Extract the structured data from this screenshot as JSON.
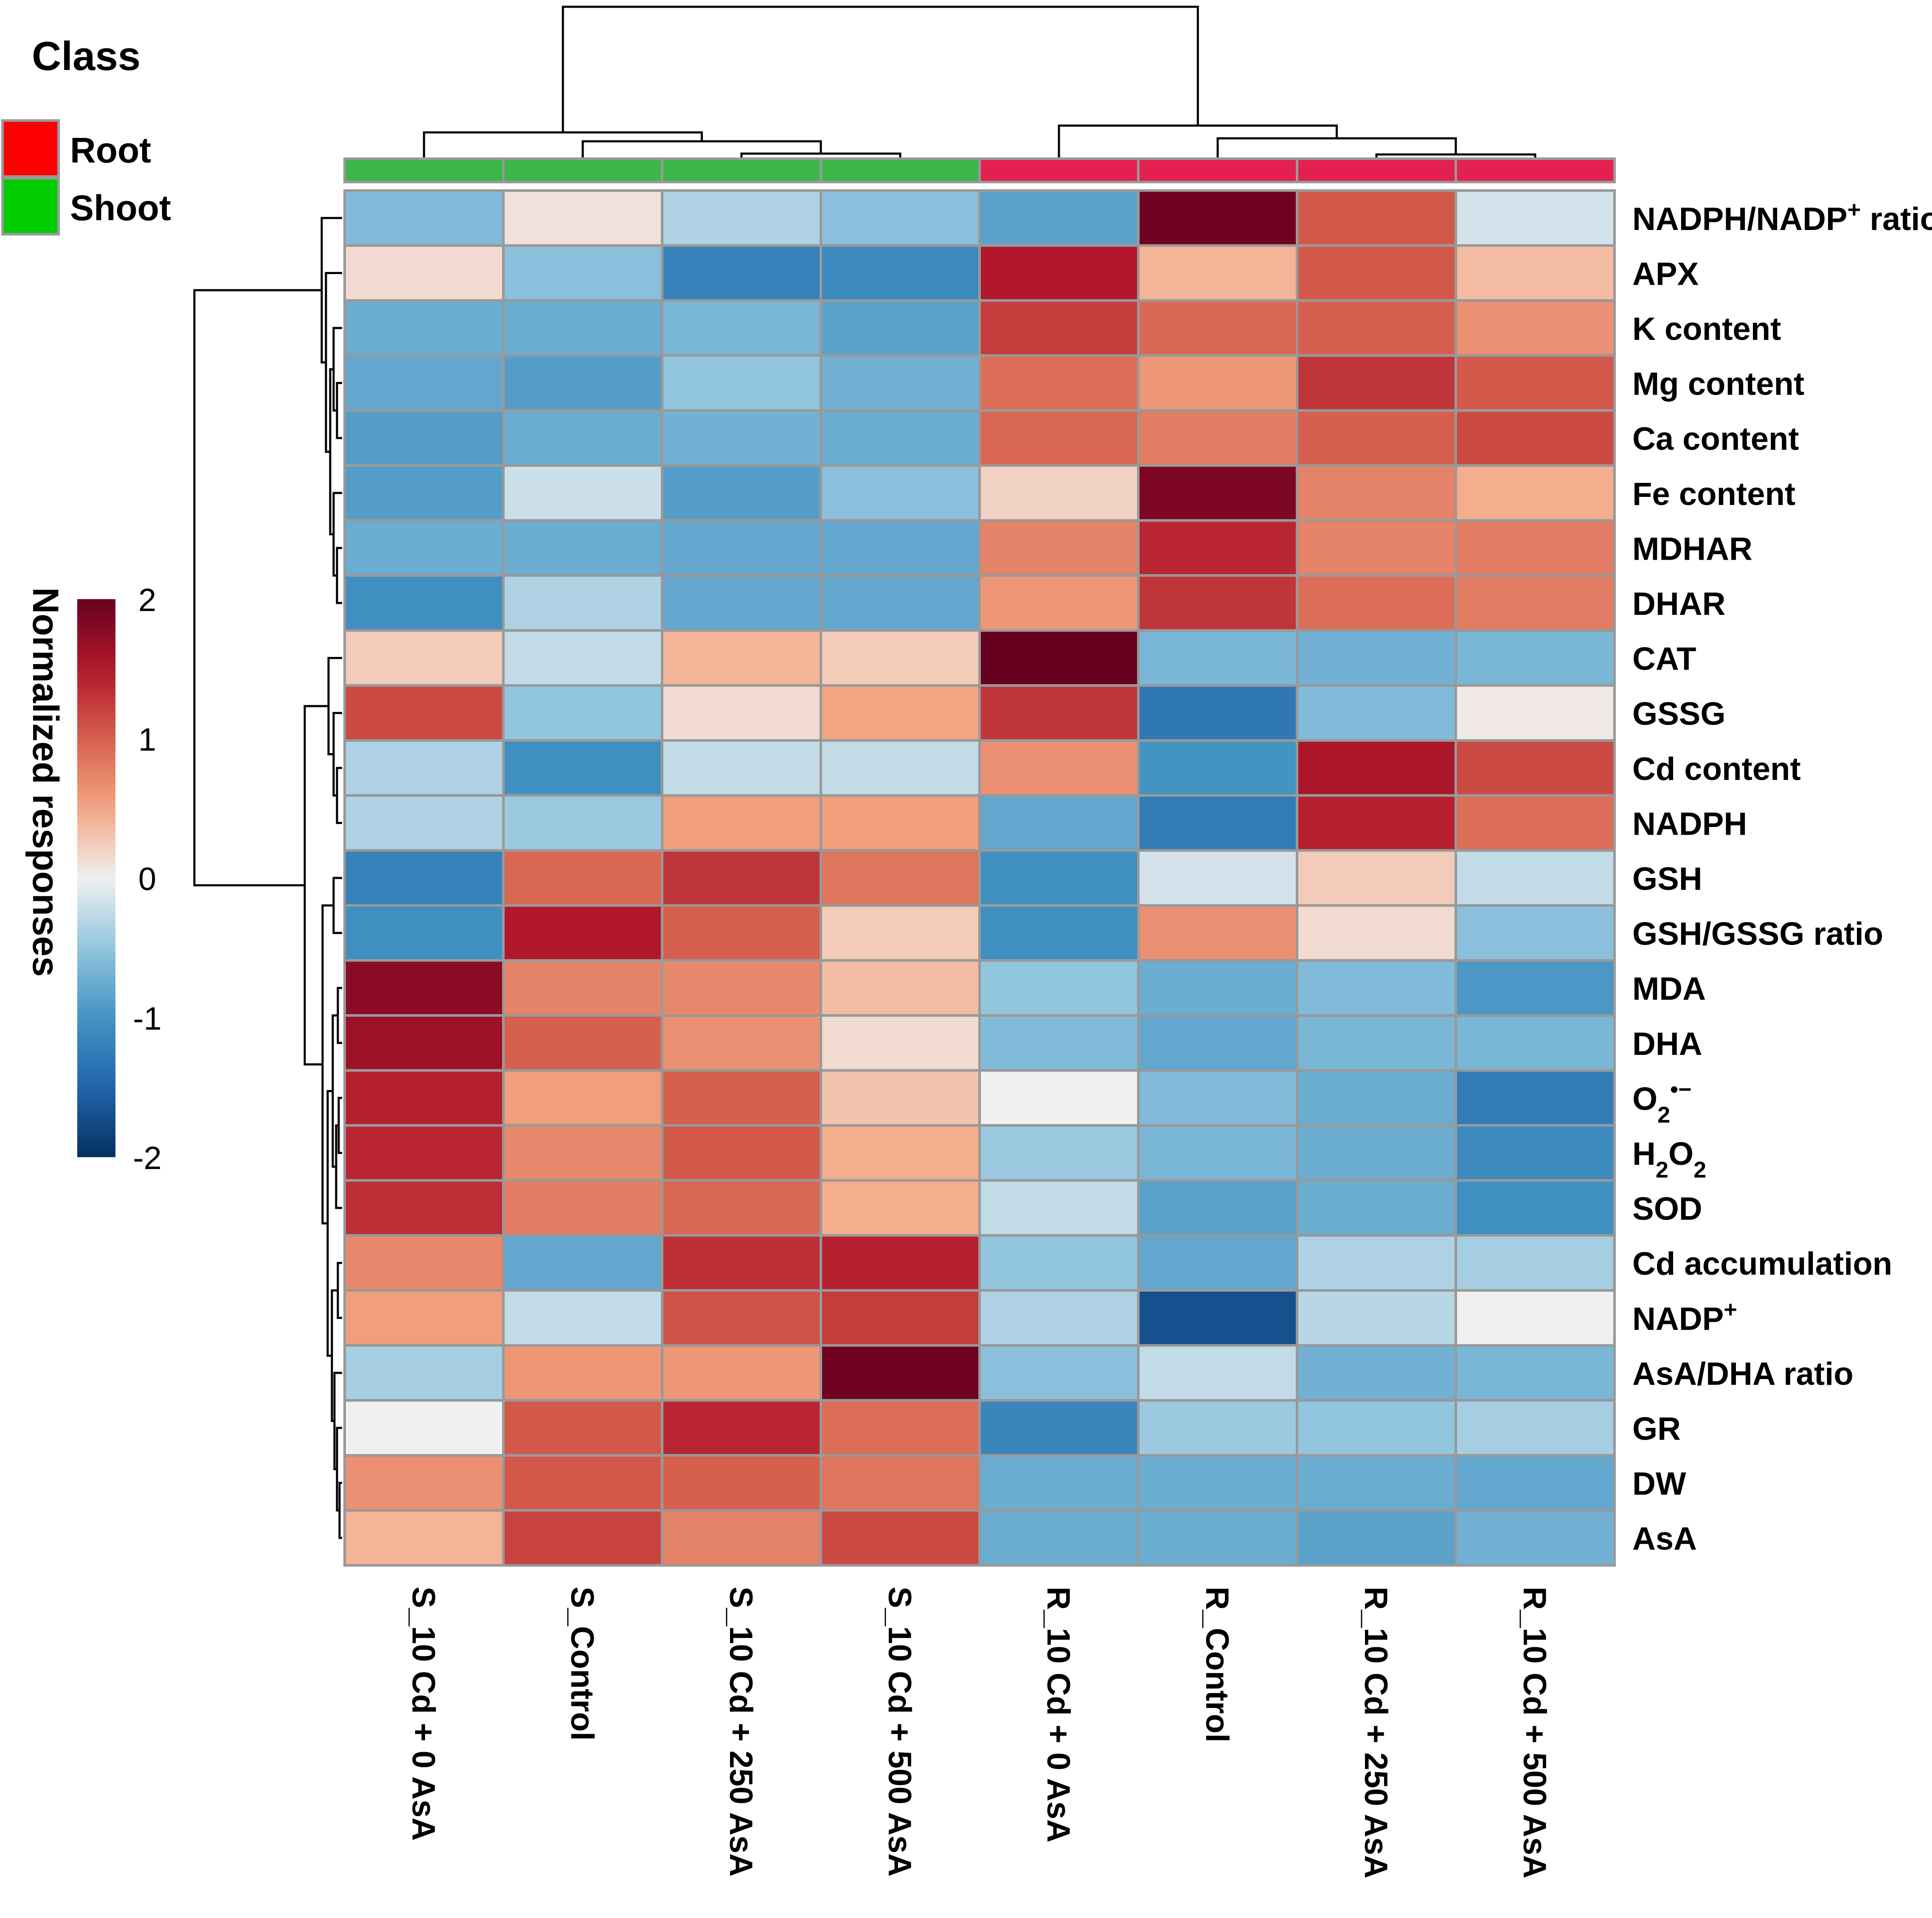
{
  "chart_data": {
    "type": "heatmap",
    "legend_title": "Class",
    "classes": [
      {
        "name": "Root",
        "color": "#ff0000"
      },
      {
        "name": "Shoot",
        "color": "#00cc00"
      }
    ],
    "class_bar_colors": {
      "Shoot": "#3cb54a",
      "Root": "#e3204f"
    },
    "colorbar": {
      "title": "Normalized responses",
      "ticks": [
        "2",
        "1",
        "0",
        "-1",
        "-2"
      ],
      "range": [
        -2,
        2
      ]
    },
    "columns": [
      {
        "label": "S_10 Cd + 0 AsA",
        "class": "Shoot"
      },
      {
        "label": "S_Control",
        "class": "Shoot"
      },
      {
        "label": "S_10 Cd + 250 AsA",
        "class": "Shoot"
      },
      {
        "label": "S_10 Cd + 500 AsA",
        "class": "Shoot"
      },
      {
        "label": "R_10 Cd + 0 AsA",
        "class": "Root"
      },
      {
        "label": "R_Control",
        "class": "Root"
      },
      {
        "label": "R_10 Cd + 250 AsA",
        "class": "Root"
      },
      {
        "label": "R_10 Cd + 500 AsA",
        "class": "Root"
      }
    ],
    "rows": [
      {
        "label": "NADPH/NADP",
        "sup": "+",
        "suffix": " ratio"
      },
      {
        "label": "APX"
      },
      {
        "label": "K content"
      },
      {
        "label": "Mg content"
      },
      {
        "label": "Ca content"
      },
      {
        "label": "Fe content"
      },
      {
        "label": "MDHAR"
      },
      {
        "label": "DHAR"
      },
      {
        "label": "CAT"
      },
      {
        "label": "GSSG"
      },
      {
        "label": "Cd content"
      },
      {
        "label": "NADPH"
      },
      {
        "label": "GSH"
      },
      {
        "label": "GSH/GSSG ratio"
      },
      {
        "label": "MDA"
      },
      {
        "label": "DHA"
      },
      {
        "label": "O",
        "sub": "2",
        "sup": "•−"
      },
      {
        "label": "H",
        "sub": "2",
        "after": "O",
        "sub2": "2"
      },
      {
        "label": "SOD"
      },
      {
        "label": "Cd accumulation"
      },
      {
        "label": "NADP",
        "sup": "+"
      },
      {
        "label": "AsA/DHA ratio"
      },
      {
        "label": "GR"
      },
      {
        "label": "DW"
      },
      {
        "label": "AsA"
      }
    ],
    "values": [
      [
        -0.6,
        0.1,
        -0.35,
        -0.55,
        -0.85,
        1.95,
        1.05,
        -0.15
      ],
      [
        0.15,
        -0.55,
        -1.2,
        -1.1,
        1.5,
        0.4,
        1.05,
        0.35
      ],
      [
        -0.75,
        -0.75,
        -0.65,
        -0.85,
        1.25,
        0.95,
        1.0,
        0.65
      ],
      [
        -0.8,
        -0.9,
        -0.5,
        -0.7,
        0.9,
        0.6,
        1.3,
        1.05
      ],
      [
        -0.9,
        -0.75,
        -0.7,
        -0.75,
        0.95,
        0.8,
        1.0,
        1.15
      ],
      [
        -0.9,
        -0.2,
        -0.9,
        -0.55,
        0.2,
        1.85,
        0.75,
        0.45
      ],
      [
        -0.75,
        -0.75,
        -0.8,
        -0.8,
        0.75,
        1.4,
        0.75,
        0.8
      ],
      [
        -1.05,
        -0.35,
        -0.8,
        -0.8,
        0.6,
        1.3,
        0.9,
        0.8
      ],
      [
        0.25,
        -0.25,
        0.4,
        0.25,
        2.05,
        -0.65,
        -0.7,
        -0.65
      ],
      [
        1.15,
        -0.5,
        0.15,
        0.5,
        1.3,
        -1.3,
        -0.6,
        0.05
      ],
      [
        -0.35,
        -1.05,
        -0.25,
        -0.25,
        0.65,
        -1.0,
        1.55,
        1.15
      ],
      [
        -0.35,
        -0.45,
        0.55,
        0.55,
        -0.8,
        -1.25,
        1.45,
        0.9
      ],
      [
        -1.2,
        0.95,
        1.3,
        0.85,
        -1.05,
        -0.15,
        0.25,
        -0.25
      ],
      [
        -1.05,
        1.5,
        1.0,
        0.25,
        -1.05,
        0.65,
        0.15,
        -0.55
      ],
      [
        1.75,
        0.75,
        0.7,
        0.35,
        -0.5,
        -0.75,
        -0.6,
        -0.95
      ],
      [
        1.65,
        1.0,
        0.65,
        0.15,
        -0.6,
        -0.8,
        -0.65,
        -0.65
      ],
      [
        1.45,
        0.55,
        1.0,
        0.3,
        0.0,
        -0.6,
        -0.75,
        -1.25
      ],
      [
        1.4,
        0.7,
        1.05,
        0.45,
        -0.45,
        -0.65,
        -0.75,
        -1.1
      ],
      [
        1.35,
        0.8,
        0.95,
        0.45,
        -0.25,
        -0.85,
        -0.75,
        -1.05
      ],
      [
        0.7,
        -0.8,
        1.35,
        1.45,
        -0.5,
        -0.8,
        -0.35,
        -0.4
      ],
      [
        0.55,
        -0.25,
        1.1,
        1.25,
        -0.35,
        -1.7,
        -0.3,
        0.0
      ],
      [
        -0.4,
        0.6,
        0.6,
        1.95,
        -0.55,
        -0.25,
        -0.7,
        -0.65
      ],
      [
        0.0,
        1.05,
        1.4,
        0.9,
        -1.15,
        -0.45,
        -0.5,
        -0.4
      ],
      [
        0.65,
        1.05,
        1.0,
        0.85,
        -0.75,
        -0.75,
        -0.75,
        -0.8
      ],
      [
        0.4,
        1.2,
        0.75,
        1.15,
        -0.75,
        -0.75,
        -0.85,
        -0.7
      ]
    ],
    "col_dendrogram": "((S_10 Cd + 0 AsA,(S_Control,(S_10 Cd + 250 AsA,S_10 Cd + 500 AsA))),(R_10 Cd + 0 AsA,(R_Control,(R_10 Cd + 250 AsA,R_10 Cd + 500 AsA))))",
    "row_dendrogram": "two main clusters: rows 1-8 and rows 9-25"
  }
}
